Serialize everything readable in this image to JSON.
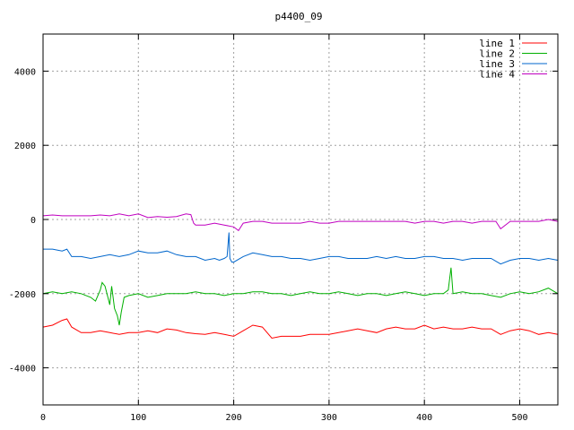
{
  "chart_data": {
    "type": "line",
    "title": "p4400_09",
    "xlabel": "",
    "ylabel": "",
    "xlim": [
      0,
      540
    ],
    "ylim": [
      -5000,
      5000
    ],
    "xticks": [
      0,
      100,
      200,
      300,
      400,
      500
    ],
    "yticks": [
      -4000,
      -2000,
      0,
      2000,
      4000
    ],
    "grid": true,
    "legend_position": "top-right",
    "series": [
      {
        "name": "line 1",
        "color": "#ff0000",
        "x": [
          0,
          10,
          20,
          25,
          30,
          40,
          50,
          60,
          70,
          80,
          90,
          100,
          110,
          120,
          130,
          140,
          150,
          160,
          170,
          180,
          190,
          200,
          210,
          220,
          230,
          240,
          250,
          260,
          270,
          280,
          290,
          300,
          310,
          320,
          330,
          340,
          350,
          360,
          370,
          380,
          390,
          400,
          410,
          420,
          430,
          440,
          450,
          460,
          470,
          480,
          490,
          500,
          510,
          520,
          530,
          540
        ],
        "y": [
          -2900,
          -2850,
          -2720,
          -2680,
          -2900,
          -3050,
          -3050,
          -3000,
          -3050,
          -3100,
          -3050,
          -3050,
          -3000,
          -3050,
          -2950,
          -2980,
          -3050,
          -3080,
          -3100,
          -3050,
          -3100,
          -3150,
          -3000,
          -2850,
          -2900,
          -3200,
          -3150,
          -3150,
          -3150,
          -3100,
          -3100,
          -3100,
          -3050,
          -3000,
          -2950,
          -3000,
          -3050,
          -2950,
          -2900,
          -2950,
          -2950,
          -2850,
          -2950,
          -2900,
          -2950,
          -2950,
          -2900,
          -2950,
          -2950,
          -3100,
          -3000,
          -2950,
          -3000,
          -3100,
          -3050,
          -3100
        ]
      },
      {
        "name": "line 2",
        "color": "#00b000",
        "x": [
          0,
          10,
          20,
          30,
          40,
          50,
          55,
          60,
          62,
          65,
          68,
          70,
          72,
          75,
          78,
          80,
          82,
          85,
          90,
          100,
          110,
          120,
          130,
          140,
          150,
          160,
          170,
          180,
          190,
          200,
          210,
          220,
          230,
          240,
          250,
          260,
          270,
          280,
          290,
          300,
          310,
          320,
          330,
          340,
          350,
          360,
          370,
          380,
          390,
          400,
          410,
          420,
          425,
          428,
          430,
          440,
          450,
          460,
          470,
          480,
          490,
          500,
          510,
          520,
          530,
          540
        ],
        "y": [
          -2000,
          -1950,
          -2000,
          -1950,
          -2000,
          -2100,
          -2200,
          -1900,
          -1700,
          -1800,
          -2100,
          -2300,
          -1800,
          -2400,
          -2600,
          -2850,
          -2500,
          -2100,
          -2050,
          -2000,
          -2100,
          -2050,
          -2000,
          -2000,
          -2000,
          -1950,
          -2000,
          -2000,
          -2050,
          -2000,
          -2000,
          -1950,
          -1950,
          -2000,
          -2000,
          -2050,
          -2000,
          -1950,
          -2000,
          -2000,
          -1950,
          -2000,
          -2050,
          -2000,
          -2000,
          -2050,
          -2000,
          -1950,
          -2000,
          -2050,
          -2000,
          -2000,
          -1900,
          -1300,
          -2000,
          -1950,
          -2000,
          -2000,
          -2050,
          -2100,
          -2000,
          -1950,
          -2000,
          -1950,
          -1850,
          -2000
        ]
      },
      {
        "name": "line 3",
        "color": "#0066cc",
        "x": [
          0,
          10,
          20,
          25,
          30,
          40,
          50,
          60,
          70,
          80,
          90,
          100,
          110,
          120,
          130,
          140,
          150,
          160,
          170,
          180,
          185,
          190,
          193,
          195,
          196,
          198,
          200,
          210,
          220,
          230,
          240,
          250,
          260,
          270,
          280,
          290,
          300,
          310,
          320,
          330,
          340,
          350,
          360,
          370,
          380,
          390,
          400,
          410,
          420,
          430,
          440,
          450,
          460,
          470,
          480,
          490,
          500,
          510,
          520,
          530,
          540
        ],
        "y": [
          -800,
          -800,
          -850,
          -800,
          -1000,
          -1000,
          -1050,
          -1000,
          -950,
          -1000,
          -950,
          -850,
          -900,
          -900,
          -850,
          -950,
          -1000,
          -1000,
          -1100,
          -1050,
          -1100,
          -1050,
          -1000,
          -350,
          -1050,
          -1150,
          -1150,
          -1000,
          -900,
          -950,
          -1000,
          -1000,
          -1050,
          -1050,
          -1100,
          -1050,
          -1000,
          -1000,
          -1050,
          -1050,
          -1050,
          -1000,
          -1050,
          -1000,
          -1050,
          -1050,
          -1000,
          -1000,
          -1050,
          -1050,
          -1100,
          -1050,
          -1050,
          -1050,
          -1200,
          -1100,
          -1050,
          -1050,
          -1100,
          -1050,
          -1100
        ]
      },
      {
        "name": "line 4",
        "color": "#c000c0",
        "x": [
          0,
          10,
          20,
          30,
          40,
          50,
          60,
          70,
          80,
          90,
          100,
          110,
          120,
          130,
          140,
          150,
          155,
          158,
          160,
          165,
          170,
          180,
          190,
          200,
          205,
          210,
          220,
          230,
          240,
          250,
          260,
          270,
          280,
          290,
          300,
          310,
          320,
          330,
          340,
          350,
          360,
          370,
          380,
          390,
          400,
          410,
          420,
          430,
          440,
          450,
          460,
          470,
          475,
          480,
          490,
          500,
          510,
          520,
          530,
          540
        ],
        "y": [
          100,
          120,
          100,
          100,
          100,
          100,
          120,
          100,
          150,
          100,
          150,
          50,
          80,
          60,
          80,
          150,
          130,
          -100,
          -150,
          -150,
          -150,
          -100,
          -150,
          -200,
          -300,
          -100,
          -50,
          -50,
          -100,
          -100,
          -100,
          -100,
          -50,
          -100,
          -100,
          -50,
          -50,
          -50,
          -50,
          -50,
          -50,
          -50,
          -50,
          -100,
          -50,
          -50,
          -100,
          -50,
          -50,
          -100,
          -50,
          -50,
          -50,
          -250,
          -50,
          -50,
          -50,
          -50,
          0,
          -50
        ]
      }
    ]
  }
}
